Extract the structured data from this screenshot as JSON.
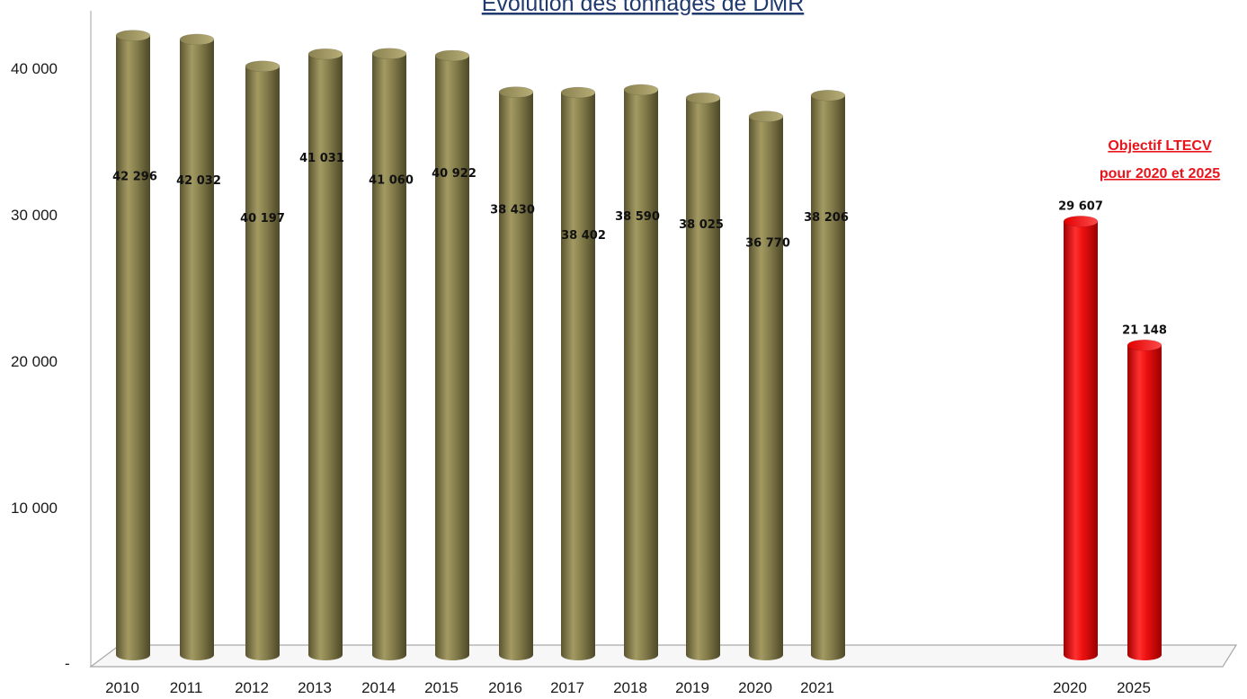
{
  "chart_data": {
    "type": "bar",
    "title": "Evolution des tonnages de DMR",
    "xlabel": "",
    "ylabel": "",
    "ylim": [
      0,
      45000
    ],
    "yticks": [
      {
        "value": 0,
        "label": "-"
      },
      {
        "value": 10000,
        "label": "10 000"
      },
      {
        "value": 20000,
        "label": "20 000"
      },
      {
        "value": 30000,
        "label": "30 000"
      },
      {
        "value": 40000,
        "label": "40 000"
      }
    ],
    "grid": false,
    "annotation": [
      "Objectif LTECV",
      "pour 2020 et 2025"
    ],
    "series": [
      {
        "categories": [
          "2010",
          "2011",
          "2012",
          "2013",
          "2014",
          "2015",
          "2016",
          "2017",
          "2018",
          "2019",
          "2020",
          "2021"
        ],
        "values": [
          42296,
          42032,
          40197,
          41031,
          41060,
          40922,
          38430,
          38402,
          38590,
          38025,
          36770,
          38206
        ],
        "value_labels": [
          "42 296",
          "42 032",
          "40 197",
          "41 031",
          "41 060",
          "40 922",
          "38 430",
          "38 402",
          "38 590",
          "38 025",
          "36 770",
          "38 206"
        ],
        "color": "#8c8450"
      },
      {
        "categories": [
          "2020",
          "2025"
        ],
        "values": [
          29607,
          21148
        ],
        "value_labels": [
          "29 607",
          "21 148"
        ],
        "color": "#ee1111"
      }
    ]
  }
}
